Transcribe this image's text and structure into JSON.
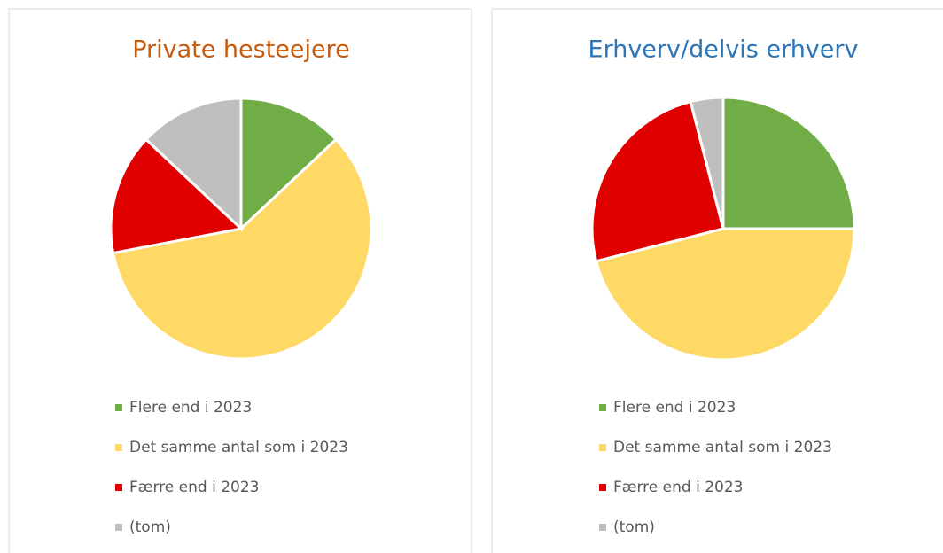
{
  "chart_data": [
    {
      "type": "pie",
      "title": "Private hesteejere",
      "title_color": "#c55a11",
      "categories": [
        "Flere end i 2023",
        "Det samme antal som i 2023",
        "Færre end i 2023",
        "(tom)"
      ],
      "values": [
        13,
        59,
        15,
        13
      ],
      "colors": [
        "#70ad47",
        "#ffd966",
        "#e00000",
        "#bfbfbf"
      ]
    },
    {
      "type": "pie",
      "title": "Erhverv/delvis erhverv",
      "title_color": "#2e75b6",
      "categories": [
        "Flere end i 2023",
        "Det samme antal som i 2023",
        "Færre end i 2023",
        "(tom)"
      ],
      "values": [
        25,
        46,
        25,
        4
      ],
      "colors": [
        "#70ad47",
        "#ffd966",
        "#e00000",
        "#bfbfbf"
      ]
    }
  ]
}
